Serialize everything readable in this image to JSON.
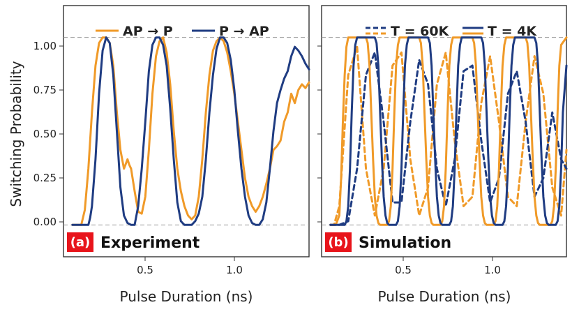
{
  "ylabel": "Switching Probability",
  "colors": {
    "orange": "#F09A28",
    "navy": "#1F3C82",
    "badge": "#E8141B"
  },
  "chart_data": [
    {
      "type": "line",
      "panel_label": "(a)",
      "title": "Experiment",
      "xlabel": "Pulse Duration (ns)",
      "ylabel": "Switching Probability",
      "xlim": [
        0.05,
        1.43
      ],
      "ylim": [
        -0.17,
        1.17
      ],
      "xticks": [
        0.5,
        1.0
      ],
      "xtick_labels": [
        "0.5",
        "1.0"
      ],
      "yticks": [
        0.0,
        0.25,
        0.5,
        0.75,
        1.0
      ],
      "ytick_labels": [
        "0.00",
        "0.25",
        "0.50",
        "0.75",
        "1.00"
      ],
      "reference_lines": [
        0,
        1
      ],
      "legend": [
        {
          "name": "AP → P",
          "style": "solid",
          "color": "#F09A28"
        },
        {
          "name": "P → AP",
          "style": "solid",
          "color": "#1F3C82"
        }
      ],
      "series": [
        {
          "name": "AP → P",
          "color": "#F09A28",
          "style": "solid",
          "x": [
            0.1,
            0.15,
            0.17,
            0.19,
            0.21,
            0.23,
            0.25,
            0.27,
            0.29,
            0.31,
            0.33,
            0.35,
            0.37,
            0.39,
            0.41,
            0.42,
            0.43,
            0.45,
            0.47,
            0.49,
            0.51,
            0.53,
            0.55,
            0.57,
            0.59,
            0.61,
            0.63,
            0.65,
            0.67,
            0.69,
            0.71,
            0.73,
            0.75,
            0.77,
            0.79,
            0.81,
            0.83,
            0.85,
            0.87,
            0.89,
            0.91,
            0.93,
            0.95,
            0.97,
            0.99,
            1.01,
            1.03,
            1.05,
            1.07,
            1.09,
            1.11,
            1.13,
            1.15,
            1.17,
            1.19,
            1.21,
            1.23,
            1.25,
            1.27,
            1.29,
            1.31,
            1.33,
            1.35,
            1.37,
            1.39,
            1.41,
            1.43
          ],
          "y": [
            0.0,
            0.0,
            0.08,
            0.3,
            0.6,
            0.85,
            0.97,
            1.0,
            1.0,
            0.97,
            0.85,
            0.6,
            0.4,
            0.3,
            0.35,
            0.32,
            0.3,
            0.18,
            0.07,
            0.06,
            0.15,
            0.4,
            0.7,
            0.9,
            0.98,
            1.0,
            0.92,
            0.75,
            0.5,
            0.3,
            0.18,
            0.1,
            0.05,
            0.03,
            0.05,
            0.15,
            0.35,
            0.6,
            0.8,
            0.93,
            0.98,
            1.0,
            0.98,
            0.92,
            0.82,
            0.7,
            0.55,
            0.4,
            0.25,
            0.15,
            0.1,
            0.07,
            0.1,
            0.15,
            0.22,
            0.3,
            0.4,
            0.42,
            0.45,
            0.55,
            0.6,
            0.7,
            0.65,
            0.72,
            0.75,
            0.73,
            0.76
          ]
        },
        {
          "name": "P → AP",
          "color": "#1F3C82",
          "style": "solid",
          "x": [
            0.1,
            0.19,
            0.2,
            0.21,
            0.23,
            0.25,
            0.27,
            0.29,
            0.31,
            0.33,
            0.35,
            0.37,
            0.39,
            0.41,
            0.43,
            0.45,
            0.47,
            0.49,
            0.51,
            0.53,
            0.55,
            0.57,
            0.59,
            0.61,
            0.63,
            0.65,
            0.67,
            0.69,
            0.71,
            0.73,
            0.75,
            0.77,
            0.79,
            0.81,
            0.83,
            0.85,
            0.87,
            0.89,
            0.91,
            0.93,
            0.95,
            0.97,
            0.99,
            1.01,
            1.03,
            1.05,
            1.07,
            1.09,
            1.11,
            1.13,
            1.15,
            1.17,
            1.19,
            1.21,
            1.23,
            1.25,
            1.27,
            1.29,
            1.31,
            1.33,
            1.35,
            1.37,
            1.39,
            1.41,
            1.43
          ],
          "y": [
            0.0,
            0.0,
            0.04,
            0.1,
            0.35,
            0.7,
            0.93,
            1.0,
            0.97,
            0.8,
            0.5,
            0.2,
            0.05,
            0.01,
            0.0,
            0.0,
            0.1,
            0.3,
            0.55,
            0.82,
            0.96,
            1.0,
            1.0,
            0.96,
            0.85,
            0.62,
            0.35,
            0.12,
            0.02,
            0.0,
            0.0,
            0.0,
            0.02,
            0.06,
            0.15,
            0.35,
            0.6,
            0.8,
            0.94,
            1.0,
            1.0,
            0.97,
            0.88,
            0.72,
            0.5,
            0.3,
            0.15,
            0.05,
            0.01,
            0.0,
            0.0,
            0.03,
            0.12,
            0.3,
            0.5,
            0.65,
            0.72,
            0.78,
            0.82,
            0.9,
            0.95,
            0.93,
            0.9,
            0.86,
            0.83
          ]
        }
      ]
    },
    {
      "type": "line",
      "panel_label": "(b)",
      "title": "Simulation",
      "xlabel": "Pulse Duration (ns)",
      "xlim": [
        0.05,
        1.43
      ],
      "ylim": [
        -0.17,
        1.17
      ],
      "xticks": [
        0.5,
        1.0
      ],
      "xtick_labels": [
        "0.5",
        "1.0"
      ],
      "yticks": [
        0.0,
        0.25,
        0.5,
        0.75,
        1.0
      ],
      "reference_lines": [
        0,
        1
      ],
      "legend": [
        {
          "name": "T = 60K",
          "style": "dashed"
        },
        {
          "name": "T = 4K",
          "style": "solid"
        }
      ],
      "series": [
        {
          "name": "T = 60K (AP → P)",
          "color": "#F09A28",
          "style": "dashed",
          "x": [
            0.1,
            0.12,
            0.15,
            0.2,
            0.25,
            0.3,
            0.35,
            0.4,
            0.45,
            0.5,
            0.55,
            0.6,
            0.65,
            0.7,
            0.75,
            0.8,
            0.85,
            0.9,
            0.95,
            1.0,
            1.05,
            1.1,
            1.15,
            1.2,
            1.25,
            1.3,
            1.35,
            1.4,
            1.43
          ],
          "y": [
            0.0,
            0.0,
            0.1,
            0.8,
            0.95,
            0.3,
            0.05,
            0.3,
            0.85,
            0.92,
            0.35,
            0.05,
            0.2,
            0.75,
            0.92,
            0.45,
            0.1,
            0.15,
            0.65,
            0.9,
            0.55,
            0.15,
            0.1,
            0.55,
            0.9,
            0.7,
            0.2,
            0.05,
            0.4
          ]
        },
        {
          "name": "T = 60K (P → AP)",
          "color": "#1F3C82",
          "style": "dashed",
          "x": [
            0.1,
            0.15,
            0.2,
            0.25,
            0.3,
            0.35,
            0.4,
            0.45,
            0.5,
            0.55,
            0.6,
            0.65,
            0.7,
            0.75,
            0.8,
            0.85,
            0.9,
            0.95,
            1.0,
            1.05,
            1.1,
            1.15,
            1.2,
            1.25,
            1.3,
            1.35,
            1.4,
            1.43
          ],
          "y": [
            0.0,
            0.0,
            0.02,
            0.3,
            0.8,
            0.92,
            0.55,
            0.12,
            0.12,
            0.55,
            0.88,
            0.75,
            0.3,
            0.1,
            0.35,
            0.82,
            0.85,
            0.45,
            0.12,
            0.25,
            0.7,
            0.82,
            0.55,
            0.15,
            0.25,
            0.6,
            0.35,
            0.3
          ]
        },
        {
          "name": "T = 4K (AP → P)",
          "color": "#F09A28",
          "style": "solid",
          "x": [
            0.1,
            0.13,
            0.15,
            0.16,
            0.17,
            0.18,
            0.19,
            0.2,
            0.25,
            0.3,
            0.31,
            0.32,
            0.33,
            0.34,
            0.35,
            0.36,
            0.37,
            0.38,
            0.42,
            0.43,
            0.44,
            0.45,
            0.46,
            0.47,
            0.48,
            0.49,
            0.5,
            0.54,
            0.6,
            0.61,
            0.62,
            0.63,
            0.64,
            0.65,
            0.66,
            0.67,
            0.68,
            0.72,
            0.73,
            0.74,
            0.75,
            0.76,
            0.77,
            0.78,
            0.79,
            0.8,
            0.86,
            0.9,
            0.91,
            0.92,
            0.93,
            0.94,
            0.95,
            0.96,
            0.97,
            0.98,
            1.02,
            1.03,
            1.04,
            1.05,
            1.06,
            1.07,
            1.08,
            1.09,
            1.1,
            1.16,
            1.2,
            1.21,
            1.22,
            1.23,
            1.24,
            1.25,
            1.26,
            1.27,
            1.28,
            1.34,
            1.35,
            1.36,
            1.37,
            1.38,
            1.39,
            1.4,
            1.43
          ],
          "y": [
            0.0,
            0.0,
            0.05,
            0.25,
            0.55,
            0.8,
            0.95,
            1.0,
            1.0,
            1.0,
            0.97,
            0.85,
            0.6,
            0.35,
            0.15,
            0.05,
            0.01,
            0.0,
            0.0,
            0.02,
            0.1,
            0.3,
            0.6,
            0.85,
            0.96,
            1.0,
            1.0,
            1.0,
            1.0,
            0.97,
            0.85,
            0.6,
            0.35,
            0.15,
            0.05,
            0.01,
            0.0,
            0.0,
            0.02,
            0.1,
            0.3,
            0.6,
            0.85,
            0.96,
            1.0,
            1.0,
            1.0,
            1.0,
            0.97,
            0.85,
            0.6,
            0.35,
            0.15,
            0.05,
            0.01,
            0.0,
            0.0,
            0.02,
            0.1,
            0.3,
            0.6,
            0.85,
            0.96,
            1.0,
            1.0,
            1.0,
            1.0,
            0.97,
            0.85,
            0.6,
            0.35,
            0.15,
            0.05,
            0.01,
            0.0,
            0.0,
            0.02,
            0.1,
            0.3,
            0.6,
            0.85,
            0.96,
            1.0
          ]
        },
        {
          "name": "T = 4K (P → AP)",
          "color": "#1F3C82",
          "style": "solid",
          "x": [
            0.1,
            0.18,
            0.19,
            0.2,
            0.21,
            0.22,
            0.23,
            0.24,
            0.25,
            0.3,
            0.35,
            0.36,
            0.37,
            0.38,
            0.39,
            0.4,
            0.41,
            0.42,
            0.43,
            0.47,
            0.48,
            0.49,
            0.5,
            0.51,
            0.52,
            0.53,
            0.54,
            0.55,
            0.6,
            0.65,
            0.66,
            0.67,
            0.68,
            0.69,
            0.7,
            0.71,
            0.72,
            0.73,
            0.77,
            0.78,
            0.79,
            0.8,
            0.81,
            0.82,
            0.83,
            0.84,
            0.85,
            0.9,
            0.95,
            0.96,
            0.97,
            0.98,
            0.99,
            1.0,
            1.01,
            1.02,
            1.03,
            1.07,
            1.08,
            1.09,
            1.1,
            1.11,
            1.12,
            1.13,
            1.14,
            1.15,
            1.2,
            1.25,
            1.26,
            1.27,
            1.28,
            1.29,
            1.3,
            1.31,
            1.32,
            1.33,
            1.37,
            1.38,
            1.39,
            1.4,
            1.41,
            1.43
          ],
          "y": [
            0.0,
            0.0,
            0.02,
            0.1,
            0.3,
            0.6,
            0.85,
            0.96,
            1.0,
            1.0,
            1.0,
            0.97,
            0.85,
            0.6,
            0.35,
            0.15,
            0.05,
            0.01,
            0.0,
            0.0,
            0.02,
            0.1,
            0.3,
            0.6,
            0.85,
            0.96,
            1.0,
            1.0,
            1.0,
            1.0,
            0.97,
            0.85,
            0.6,
            0.35,
            0.15,
            0.05,
            0.01,
            0.0,
            0.0,
            0.02,
            0.1,
            0.3,
            0.6,
            0.85,
            0.96,
            1.0,
            1.0,
            1.0,
            1.0,
            0.97,
            0.85,
            0.6,
            0.35,
            0.15,
            0.05,
            0.01,
            0.0,
            0.0,
            0.02,
            0.1,
            0.3,
            0.6,
            0.85,
            0.96,
            1.0,
            1.0,
            1.0,
            1.0,
            0.97,
            0.85,
            0.6,
            0.35,
            0.15,
            0.05,
            0.01,
            0.0,
            0.0,
            0.02,
            0.1,
            0.3,
            0.6,
            0.85
          ]
        }
      ]
    }
  ]
}
